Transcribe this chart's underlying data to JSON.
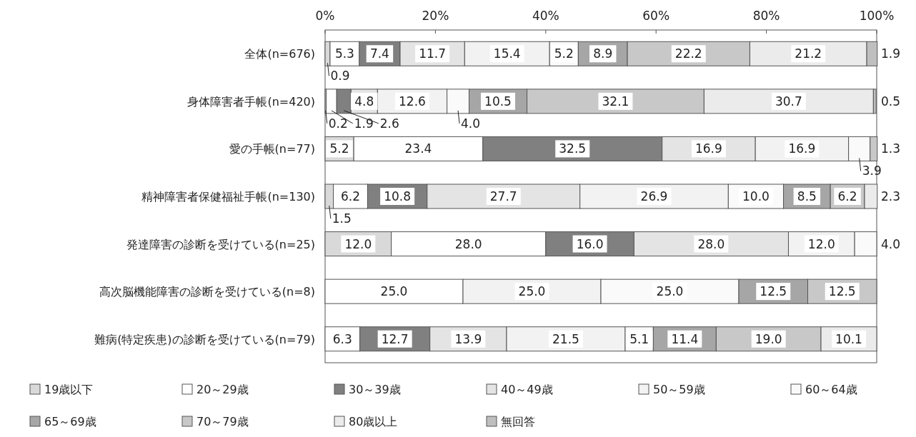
{
  "chart_data": {
    "type": "bar",
    "orientation": "horizontal",
    "stacked": true,
    "legend": "bottom",
    "grid": false,
    "categories": [
      "全体(n=676)",
      "身体障害者手帳(n=420)",
      "愛の手帳(n=77)",
      "精神障害者保健福祉手帳(n=130)",
      "発達障害の診断を受けている(n=25)",
      "高次脳機能障害の診断を受けている(n=8)",
      "難病(特定疾患)の診断を受けている(n=79)"
    ],
    "xlim": [
      0,
      100
    ],
    "xticks": [
      {
        "value": 0,
        "label": "0%"
      },
      {
        "value": 20,
        "label": "20%"
      },
      {
        "value": 40,
        "label": "40%"
      },
      {
        "value": 60,
        "label": "60%"
      },
      {
        "value": 80,
        "label": "80%"
      },
      {
        "value": 100,
        "label": "100%"
      }
    ],
    "series": [
      {
        "name": "19歳以下",
        "color": "#d9d9d9",
        "values": [
          0.9,
          0.2,
          5.2,
          1.5,
          12.0,
          null,
          null
        ],
        "value_labels": [
          "0.9",
          "0.2",
          "5.2",
          "1.5",
          "12.0",
          null,
          null
        ]
      },
      {
        "name": "20～29歳",
        "color": "#ffffff",
        "values": [
          5.3,
          1.9,
          23.4,
          6.2,
          28.0,
          25.0,
          6.3
        ],
        "value_labels": [
          "5.3",
          "1.9",
          "23.4",
          "6.2",
          "28.0",
          "25.0",
          "6.3"
        ]
      },
      {
        "name": "30～39歳",
        "color": "#808080",
        "values": [
          7.4,
          2.6,
          32.5,
          10.8,
          16.0,
          null,
          12.7
        ],
        "value_labels": [
          "7.4",
          "2.6",
          "32.5",
          "10.8",
          "16.0",
          null,
          "12.7"
        ]
      },
      {
        "name": "40～49歳",
        "color": "#e4e4e4",
        "values": [
          11.7,
          4.8,
          16.9,
          27.7,
          28.0,
          null,
          13.9
        ],
        "value_labels": [
          "11.7",
          "4.8",
          "16.9",
          "27.7",
          "28.0",
          null,
          "13.9"
        ]
      },
      {
        "name": "50～59歳",
        "color": "#f2f2f2",
        "values": [
          15.4,
          12.6,
          16.9,
          26.9,
          12.0,
          25.0,
          21.5
        ],
        "value_labels": [
          "15.4",
          "12.6",
          "16.9",
          "26.9",
          "12.0",
          "25.0",
          "21.5"
        ]
      },
      {
        "name": "60～64歳",
        "color": "#fafafa",
        "values": [
          5.2,
          4.0,
          3.9,
          10.0,
          4.0,
          25.0,
          5.1
        ],
        "value_labels": [
          "5.2",
          "4.0",
          "3.9",
          "10.0",
          "4.0",
          "25.0",
          "5.1"
        ]
      },
      {
        "name": "65～69歳",
        "color": "#a6a6a6",
        "values": [
          8.9,
          10.5,
          null,
          8.5,
          null,
          12.5,
          11.4
        ],
        "value_labels": [
          "8.9",
          "10.5",
          null,
          "8.5",
          null,
          "12.5",
          "11.4"
        ]
      },
      {
        "name": "70～79歳",
        "color": "#c8c8c8",
        "values": [
          22.2,
          32.1,
          1.3,
          6.2,
          null,
          12.5,
          19.0
        ],
        "value_labels": [
          "22.2",
          "32.1",
          "1.3",
          "6.2",
          null,
          "12.5",
          "19.0"
        ]
      },
      {
        "name": "80歳以上",
        "color": "#ebebeb",
        "values": [
          21.2,
          30.7,
          null,
          2.3,
          null,
          null,
          10.1
        ],
        "value_labels": [
          "21.2",
          "30.7",
          null,
          "2.3",
          null,
          null,
          "10.1"
        ]
      },
      {
        "name": "無回答",
        "color": "#bfbfbf",
        "values": [
          1.9,
          0.5,
          null,
          null,
          null,
          null,
          null
        ],
        "value_labels": [
          "1.9",
          "0.5",
          null,
          null,
          null,
          null,
          null
        ]
      }
    ]
  }
}
